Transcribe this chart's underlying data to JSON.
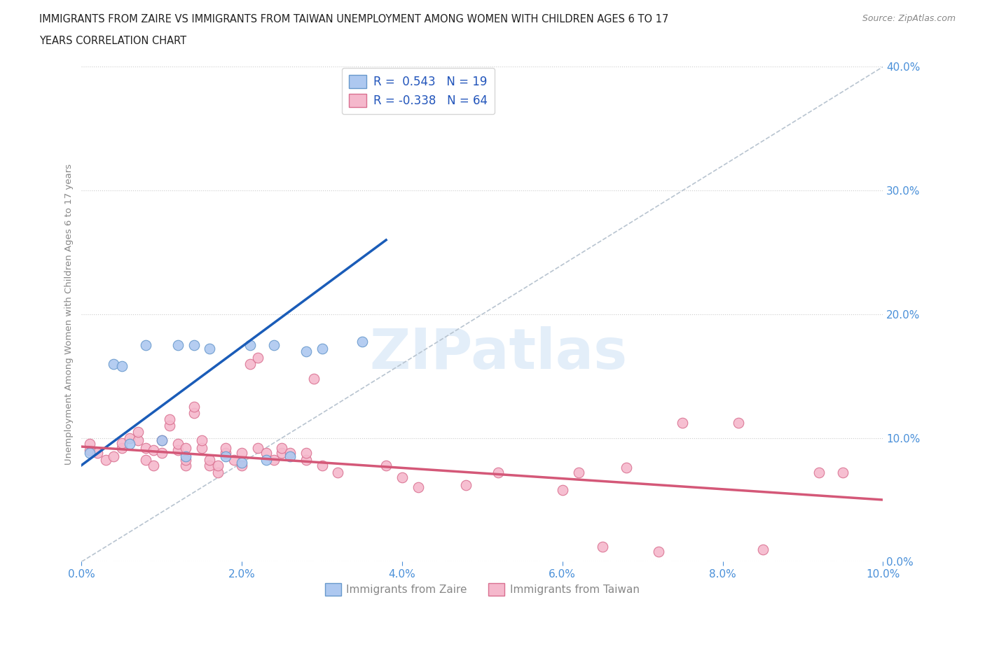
{
  "title_line1": "IMMIGRANTS FROM ZAIRE VS IMMIGRANTS FROM TAIWAN UNEMPLOYMENT AMONG WOMEN WITH CHILDREN AGES 6 TO 17",
  "title_line2": "YEARS CORRELATION CHART",
  "source": "Source: ZipAtlas.com",
  "ylabel": "Unemployment Among Women with Children Ages 6 to 17 years",
  "xlim": [
    0.0,
    0.1
  ],
  "ylim": [
    0.0,
    0.4
  ],
  "xticks": [
    0.0,
    0.02,
    0.04,
    0.06,
    0.08,
    0.1
  ],
  "yticks": [
    0.0,
    0.1,
    0.2,
    0.3,
    0.4
  ],
  "zaire_color": "#adc8f0",
  "zaire_edge_color": "#6899cc",
  "taiwan_color": "#f5b8cc",
  "taiwan_edge_color": "#d97090",
  "zaire_line_color": "#1a5cb8",
  "taiwan_line_color": "#d45878",
  "diagonal_color": "#b8c4d0",
  "zaire_R": 0.543,
  "zaire_N": 19,
  "taiwan_R": -0.338,
  "taiwan_N": 64,
  "watermark": "ZIPatlas",
  "background_color": "#ffffff",
  "zaire_x": [
    0.001,
    0.004,
    0.005,
    0.006,
    0.008,
    0.01,
    0.012,
    0.013,
    0.014,
    0.016,
    0.018,
    0.02,
    0.021,
    0.023,
    0.024,
    0.026,
    0.028,
    0.03,
    0.035
  ],
  "zaire_y": [
    0.088,
    0.16,
    0.158,
    0.095,
    0.175,
    0.098,
    0.175,
    0.085,
    0.175,
    0.172,
    0.085,
    0.08,
    0.175,
    0.082,
    0.175,
    0.085,
    0.17,
    0.172,
    0.178
  ],
  "taiwan_x": [
    0.001,
    0.001,
    0.002,
    0.003,
    0.004,
    0.005,
    0.005,
    0.006,
    0.007,
    0.007,
    0.008,
    0.008,
    0.009,
    0.009,
    0.01,
    0.01,
    0.011,
    0.011,
    0.012,
    0.012,
    0.013,
    0.013,
    0.013,
    0.014,
    0.014,
    0.015,
    0.015,
    0.016,
    0.016,
    0.017,
    0.017,
    0.018,
    0.018,
    0.019,
    0.02,
    0.02,
    0.021,
    0.022,
    0.022,
    0.023,
    0.024,
    0.025,
    0.025,
    0.026,
    0.028,
    0.028,
    0.029,
    0.03,
    0.032,
    0.038,
    0.04,
    0.042,
    0.048,
    0.052,
    0.06,
    0.062,
    0.065,
    0.068,
    0.072,
    0.075,
    0.082,
    0.085,
    0.092,
    0.095
  ],
  "taiwan_y": [
    0.09,
    0.095,
    0.088,
    0.082,
    0.085,
    0.092,
    0.096,
    0.1,
    0.098,
    0.105,
    0.082,
    0.092,
    0.078,
    0.09,
    0.098,
    0.088,
    0.11,
    0.115,
    0.09,
    0.095,
    0.078,
    0.082,
    0.092,
    0.12,
    0.125,
    0.092,
    0.098,
    0.078,
    0.082,
    0.072,
    0.078,
    0.088,
    0.092,
    0.082,
    0.078,
    0.088,
    0.16,
    0.165,
    0.092,
    0.088,
    0.082,
    0.088,
    0.092,
    0.088,
    0.082,
    0.088,
    0.148,
    0.078,
    0.072,
    0.078,
    0.068,
    0.06,
    0.062,
    0.072,
    0.058,
    0.072,
    0.012,
    0.076,
    0.008,
    0.112,
    0.112,
    0.01,
    0.072,
    0.072
  ],
  "zaire_line_x": [
    0.0,
    0.038
  ],
  "zaire_line_y": [
    0.078,
    0.26
  ],
  "taiwan_line_x": [
    0.0,
    0.1
  ],
  "taiwan_line_y": [
    0.093,
    0.05
  ]
}
